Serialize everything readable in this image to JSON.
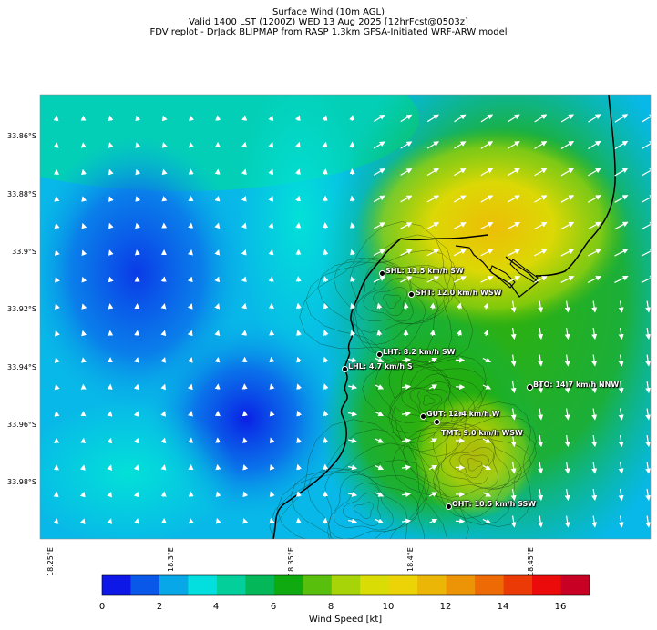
{
  "title": {
    "line1": "Surface Wind (10m AGL)",
    "line2": "Valid 1400 LST (1200Z) WED 13 Aug 2025 [12hrFcst@0503z]",
    "line3": "FDV replot - DrJack BLIPMAP from RASP 1.3km GFSA-Initiated WRF-ARW model"
  },
  "lat_labels": [
    "33.86°S",
    "33.88°S",
    "33.9°S",
    "33.92°S",
    "33.94°S",
    "33.96°S",
    "33.98°S"
  ],
  "lon_labels": [
    "18.25°E",
    "18.3°E",
    "18.35°E",
    "18.4°E",
    "18.45°E"
  ],
  "colorbar": {
    "label": "Wind Speed [kt]",
    "ticks": [
      "0",
      "2",
      "4",
      "6",
      "8",
      "10",
      "12",
      "14",
      "16"
    ],
    "colors": [
      "#0d18e6",
      "#0a58ea",
      "#08a8e8",
      "#03dede",
      "#03cf9a",
      "#04b85a",
      "#0faa10",
      "#58bf0c",
      "#a6d409",
      "#d9dd05",
      "#ecd307",
      "#ecb607",
      "#ed9306",
      "#ee6a05",
      "#ec3a07",
      "#ea0b0a",
      "#c80023"
    ]
  },
  "stations": [
    {
      "label": "SHL: 11.5 km/h SW"
    },
    {
      "label": "SHT: 12.0 km/h WSW"
    },
    {
      "label": "LHT: 8.2 km/h SW"
    },
    {
      "label": "LHL: 4.7 km/h S"
    },
    {
      "label": "BTO: 14.7 km/h NNW"
    },
    {
      "label": "GUT: 12.4 km/h W"
    },
    {
      "label": "TMT: 9.0 km/h WSW"
    },
    {
      "label": "OHT: 10.5 km/h SSW"
    }
  ]
}
